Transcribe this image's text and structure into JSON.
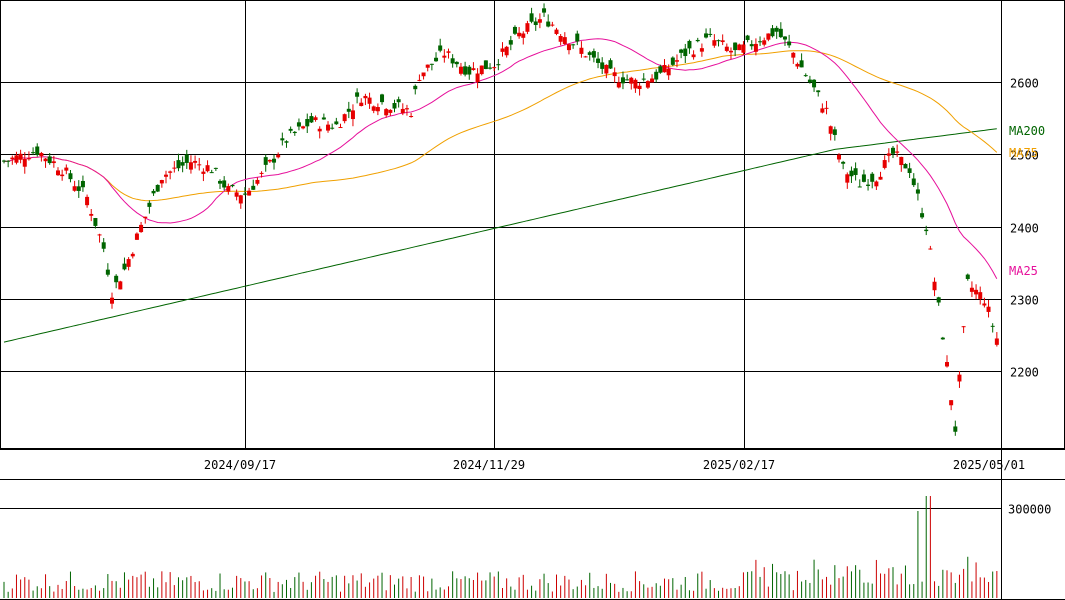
{
  "chart_data": {
    "type": "candlestick",
    "colors": {
      "up": "#e60000",
      "down": "#006400",
      "ma25": "#e6109b",
      "ma75": "#f0a000",
      "ma200": "#006400",
      "grid": "#000000",
      "volume_up": "#cc0000",
      "volume_down": "#006400"
    },
    "price_axis": {
      "ticks": [
        2200,
        2300,
        2400,
        2500,
        2600
      ],
      "labels": [
        "2200",
        "2300",
        "2400",
        "2500",
        "2600"
      ],
      "range": [
        2100,
        2710
      ]
    },
    "date_axis": {
      "labels": [
        "2024/09/17",
        "2024/11/29",
        "2025/02/17",
        "2025/05/01"
      ]
    },
    "volume_axis": {
      "ticks": [
        300000
      ],
      "labels": [
        "300000"
      ],
      "range": [
        0,
        380000
      ]
    },
    "legend": [
      {
        "key": "ma200",
        "label": "MA200"
      },
      {
        "key": "ma75",
        "label": "MA75"
      },
      {
        "key": "ma25",
        "label": "MA25"
      }
    ]
  }
}
